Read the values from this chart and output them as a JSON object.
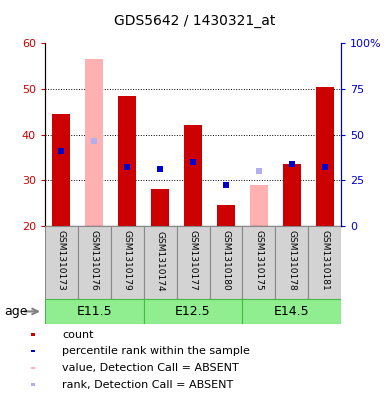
{
  "title": "GDS5642 / 1430321_at",
  "samples": [
    "GSM1310173",
    "GSM1310176",
    "GSM1310179",
    "GSM1310174",
    "GSM1310177",
    "GSM1310180",
    "GSM1310175",
    "GSM1310178",
    "GSM1310181"
  ],
  "count_values": [
    44.5,
    null,
    48.5,
    28.0,
    42.0,
    24.5,
    null,
    33.5,
    50.5
  ],
  "absent_values": [
    null,
    56.5,
    null,
    null,
    null,
    null,
    29.0,
    null,
    null
  ],
  "percentile_values": [
    36.5,
    null,
    33.0,
    32.5,
    34.0,
    29.0,
    null,
    33.5,
    33.0
  ],
  "absent_rank_values": [
    null,
    38.5,
    null,
    null,
    null,
    null,
    32.0,
    null,
    null
  ],
  "ylim_left": [
    20,
    60
  ],
  "ylim_right": [
    0,
    100
  ],
  "yticks_left": [
    20,
    30,
    40,
    50,
    60
  ],
  "yticks_right": [
    0,
    25,
    50,
    75,
    100
  ],
  "age_groups": [
    {
      "label": "E11.5",
      "start": 0,
      "end": 3
    },
    {
      "label": "E12.5",
      "start": 3,
      "end": 6
    },
    {
      "label": "E14.5",
      "start": 6,
      "end": 9
    }
  ],
  "colors": {
    "count_bar": "#cc0000",
    "absent_bar": "#ffb0b0",
    "percentile_marker": "#0000cc",
    "absent_rank_marker": "#b0b0ee",
    "bar_bottom": 20,
    "age_group_bg": "#90ee90",
    "age_group_border": "#44bb44",
    "sample_bg": "#d3d3d3",
    "sample_border": "#888888",
    "left_tick_color": "#cc0000",
    "right_tick_color": "#0000cc"
  },
  "legend_items": [
    {
      "color": "#cc0000",
      "label": "count"
    },
    {
      "color": "#0000cc",
      "label": "percentile rank within the sample"
    },
    {
      "color": "#ffb0b0",
      "label": "value, Detection Call = ABSENT"
    },
    {
      "color": "#b0b0ee",
      "label": "rank, Detection Call = ABSENT"
    }
  ]
}
